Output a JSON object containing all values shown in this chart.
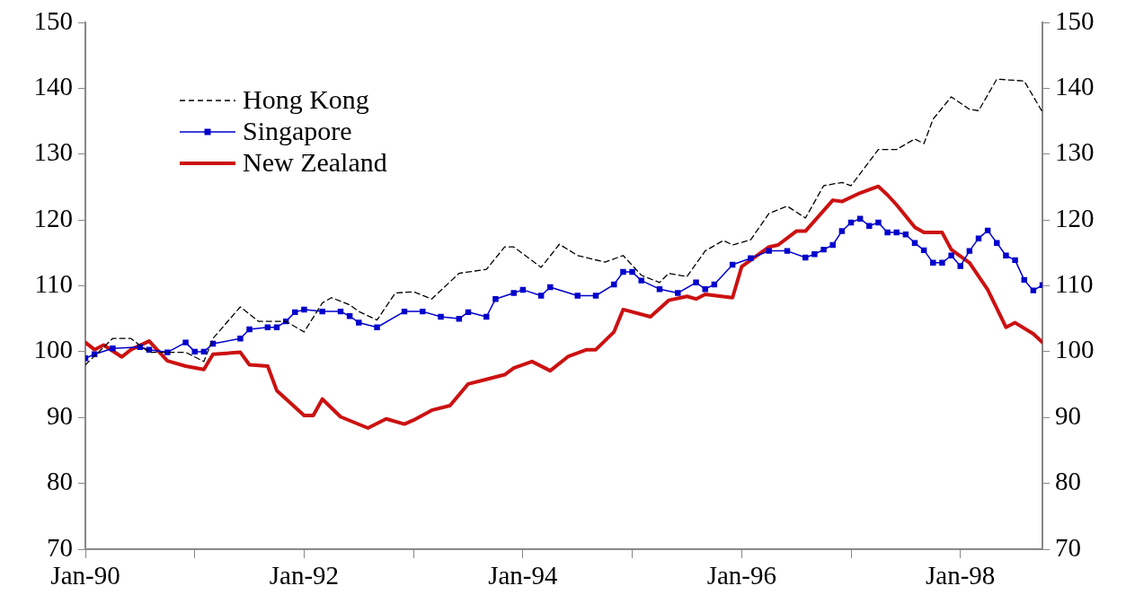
{
  "chart_data": {
    "type": "line",
    "legend": "top left",
    "grid": false,
    "xlim": [
      "1990-01",
      "1998-10"
    ],
    "xticks": [
      {
        "value": "1990-01",
        "label": "Jan-90"
      },
      {
        "value": "1991-01",
        "label": null
      },
      {
        "value": "1992-01",
        "label": "Jan-92"
      },
      {
        "value": "1993-01",
        "label": null
      },
      {
        "value": "1994-01",
        "label": "Jan-94"
      },
      {
        "value": "1995-01",
        "label": null
      },
      {
        "value": "1996-01",
        "label": "Jan-96"
      },
      {
        "value": "1997-01",
        "label": null
      },
      {
        "value": "1998-01",
        "label": "Jan-98"
      }
    ],
    "ylim": [
      70,
      150
    ],
    "yticks": [
      70,
      80,
      90,
      100,
      110,
      120,
      130,
      140,
      150
    ],
    "y2lim": [
      70,
      150
    ],
    "y2ticks": [
      70,
      80,
      90,
      100,
      110,
      120,
      130,
      140,
      150
    ],
    "series": [
      {
        "name": "Hong Kong",
        "color": "#000000",
        "line_style": "dashed",
        "marker": "none",
        "x": [
          "1990-01",
          "1990-04",
          "1990-06",
          "1990-08",
          "1990-12",
          "1991-02",
          "1991-03",
          "1991-06",
          "1991-08",
          "1991-11",
          "1992-01",
          "1992-03",
          "1992-04",
          "1992-06",
          "1992-07",
          "1992-09",
          "1992-11",
          "1993-01",
          "1993-03",
          "1993-06",
          "1993-09",
          "1993-11",
          "1993-12",
          "1994-03",
          "1994-05",
          "1994-07",
          "1994-10",
          "1994-12",
          "1995-02",
          "1995-04",
          "1995-05",
          "1995-07",
          "1995-09",
          "1995-11",
          "1995-12",
          "1996-02",
          "1996-04",
          "1996-06",
          "1996-08",
          "1996-10",
          "1996-12",
          "1997-01",
          "1997-04",
          "1997-06",
          "1997-08",
          "1997-09",
          "1997-10",
          "1997-12",
          "1998-02",
          "1998-03",
          "1998-05",
          "1998-08",
          "1998-10"
        ],
        "values": [
          98,
          102,
          102,
          99.9,
          99.9,
          98.5,
          102,
          106.8,
          104.6,
          104.6,
          103,
          107.4,
          108.2,
          107.1,
          106.1,
          104.8,
          108.9,
          109.1,
          108,
          111.9,
          112.5,
          115.9,
          115.9,
          112.8,
          116.3,
          114.6,
          113.6,
          114.6,
          111.6,
          110.5,
          111.9,
          111.4,
          115.3,
          116.9,
          116.2,
          117,
          121,
          122.1,
          120.3,
          125.2,
          125.7,
          125.2,
          130.7,
          130.7,
          132.3,
          131.6,
          135.3,
          138.7,
          136.8,
          136.6,
          141.4,
          141.1,
          136.4
        ]
      },
      {
        "name": "Singapore",
        "color": "#0000cc",
        "line_style": "solid",
        "marker": "square",
        "x": [
          "1990-01",
          "1990-02",
          "1990-04",
          "1990-07",
          "1990-08",
          "1990-10",
          "1990-12",
          "1991-01",
          "1991-02",
          "1991-03",
          "1991-06",
          "1991-07",
          "1991-09",
          "1991-10",
          "1991-11",
          "1991-12",
          "1992-01",
          "1992-03",
          "1992-05",
          "1992-06",
          "1992-07",
          "1992-09",
          "1992-12",
          "1993-02",
          "1993-04",
          "1993-06",
          "1993-07",
          "1993-09",
          "1993-10",
          "1993-12",
          "1994-01",
          "1994-03",
          "1994-04",
          "1994-07",
          "1994-09",
          "1994-11",
          "1994-12",
          "1995-01",
          "1995-02",
          "1995-04",
          "1995-06",
          "1995-08",
          "1995-09",
          "1995-10",
          "1995-12",
          "1996-02",
          "1996-04",
          "1996-06",
          "1996-08",
          "1996-09",
          "1996-10",
          "1996-11",
          "1996-12",
          "1997-01",
          "1997-02",
          "1997-03",
          "1997-04",
          "1997-05",
          "1997-06",
          "1997-07",
          "1997-08",
          "1997-09",
          "1997-10",
          "1997-11",
          "1997-12",
          "1998-01",
          "1998-02",
          "1998-03",
          "1998-04",
          "1998-05",
          "1998-06",
          "1998-07",
          "1998-08",
          "1998-09",
          "1998-10"
        ],
        "values": [
          99,
          99.6,
          100.5,
          100.7,
          100.3,
          99.9,
          101.4,
          100,
          100,
          101.2,
          102,
          103.4,
          103.7,
          103.7,
          104.6,
          106,
          106.4,
          106.1,
          106.1,
          105.4,
          104.4,
          103.7,
          106.1,
          106.1,
          105.3,
          105,
          106,
          105.3,
          108,
          108.9,
          109.4,
          108.5,
          109.8,
          108.5,
          108.5,
          110.2,
          112.1,
          112.1,
          110.8,
          109.5,
          108.9,
          110.5,
          109.5,
          110.2,
          113.2,
          114.2,
          115.3,
          115.3,
          114.3,
          114.8,
          115.5,
          116.2,
          118.3,
          119.6,
          120.2,
          119.1,
          119.6,
          118.1,
          118.1,
          117.8,
          116.5,
          115.4,
          113.5,
          113.5,
          114.6,
          113,
          115.3,
          117.2,
          118.4,
          116.5,
          114.6,
          113.9,
          110.9,
          109.3,
          110.1
        ]
      },
      {
        "name": "New Zealand",
        "color": "#cc1111",
        "line_style": "solid",
        "marker": "none",
        "x": [
          "1990-01",
          "1990-02",
          "1990-03",
          "1990-05",
          "1990-06",
          "1990-08",
          "1990-10",
          "1990-12",
          "1991-02",
          "1991-03",
          "1991-06",
          "1991-07",
          "1991-09",
          "1991-10",
          "1992-01",
          "1992-02",
          "1992-03",
          "1992-05",
          "1992-08",
          "1992-10",
          "1992-12",
          "1993-01",
          "1993-03",
          "1993-05",
          "1993-07",
          "1993-09",
          "1993-11",
          "1993-12",
          "1994-02",
          "1994-04",
          "1994-06",
          "1994-08",
          "1994-09",
          "1994-11",
          "1994-12",
          "1995-03",
          "1995-05",
          "1995-07",
          "1995-08",
          "1995-09",
          "1995-12",
          "1996-01",
          "1996-04",
          "1996-05",
          "1996-07",
          "1996-08",
          "1996-11",
          "1996-12",
          "1997-02",
          "1997-04",
          "1997-05",
          "1997-06",
          "1997-08",
          "1997-09",
          "1997-11",
          "1997-12",
          "1998-02",
          "1998-04",
          "1998-06",
          "1998-07",
          "1998-09",
          "1998-10"
        ],
        "values": [
          101.4,
          100.3,
          101,
          99.2,
          100.3,
          101.6,
          98.6,
          97.8,
          97.3,
          99.6,
          99.9,
          98,
          97.8,
          94.1,
          90.3,
          90.3,
          92.8,
          90.1,
          88.4,
          89.8,
          89,
          89.6,
          91.1,
          91.8,
          95.1,
          95.8,
          96.5,
          97.5,
          98.5,
          97.1,
          99.3,
          100.3,
          100.3,
          103,
          106.4,
          105.3,
          107.8,
          108.4,
          108,
          108.7,
          108.2,
          112.9,
          115.9,
          116.2,
          118.3,
          118.3,
          123,
          122.8,
          124.1,
          125.1,
          123.8,
          122.3,
          118.9,
          118.1,
          118.1,
          115.5,
          113.5,
          109.4,
          103.7,
          104.4,
          102.7,
          101.4
        ]
      }
    ]
  }
}
